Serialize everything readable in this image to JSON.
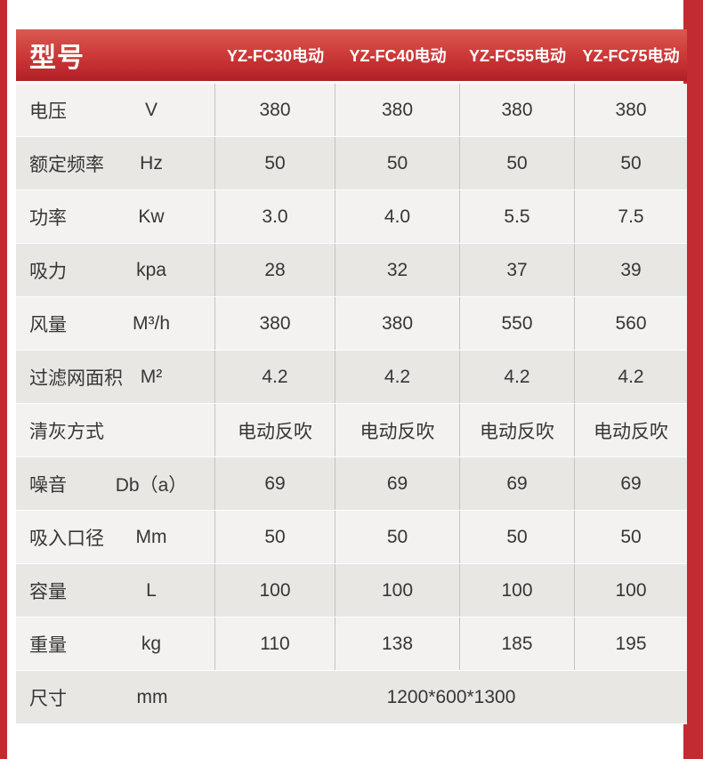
{
  "theme": {
    "edge_strip_red": "#c22b30",
    "header_gradient_top": "#da5a50",
    "header_gradient_bottom": "#ab2126",
    "row_light": "#f3f2f0",
    "row_alt": "#e8e7e4",
    "divider": "#c5c4c2",
    "text": "#363636",
    "header_text": "#ffffff"
  },
  "table": {
    "header": {
      "title": "型号",
      "columns": [
        "YZ-FC30电动",
        "YZ-FC40电动",
        "YZ-FC55电动",
        "YZ-FC75电动"
      ]
    },
    "rows": [
      {
        "name": "电压",
        "unit": "V",
        "values": [
          "380",
          "380",
          "380",
          "380"
        ]
      },
      {
        "name": "额定频率",
        "unit": "Hz",
        "values": [
          "50",
          "50",
          "50",
          "50"
        ]
      },
      {
        "name": "功率",
        "unit": "Kw",
        "values": [
          "3.0",
          "4.0",
          "5.5",
          "7.5"
        ]
      },
      {
        "name": "吸力",
        "unit": "kpa",
        "values": [
          "28",
          "32",
          "37",
          "39"
        ]
      },
      {
        "name": "风量",
        "unit": "M³/h",
        "values": [
          "380",
          "380",
          "550",
          "560"
        ]
      },
      {
        "name": "过滤网面积",
        "unit": "M²",
        "values": [
          "4.2",
          "4.2",
          "4.2",
          "4.2"
        ]
      },
      {
        "name": "清灰方式",
        "unit": "",
        "values": [
          "电动反吹",
          "电动反吹",
          "电动反吹",
          "电动反吹"
        ]
      },
      {
        "name": "噪音",
        "unit": "Db（a）",
        "values": [
          "69",
          "69",
          "69",
          "69"
        ]
      },
      {
        "name": "吸入口径",
        "unit": "Mm",
        "values": [
          "50",
          "50",
          "50",
          "50"
        ]
      },
      {
        "name": "容量",
        "unit": "L",
        "values": [
          "100",
          "100",
          "100",
          "100"
        ]
      },
      {
        "name": "重量",
        "unit": "kg",
        "values": [
          "110",
          "138",
          "185",
          "195"
        ]
      },
      {
        "name": "尺寸",
        "unit": "mm",
        "values_merged": "1200*600*1300"
      }
    ]
  }
}
